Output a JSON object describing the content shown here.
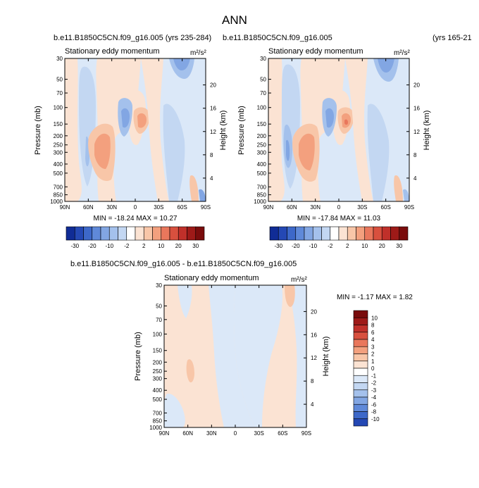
{
  "page_title": "ANN",
  "unit_label": "m²/s²",
  "colors": {
    "pos_shades": [
      "#fbe3d3",
      "#f8c6a8",
      "#f3a07e",
      "#e9775c",
      "#d8503e",
      "#c0302a",
      "#9e1a18",
      "#7a0c0c"
    ],
    "neg_shades": [
      "#dbe8f8",
      "#c3d7f2",
      "#a4c1ec",
      "#82a6e3",
      "#5f89d9",
      "#3d68c9",
      "#2448b4",
      "#102c96"
    ]
  },
  "panels": [
    {
      "id": "p1",
      "case_title": "b.e11.B1850C5CN.f09_g16.005 (yrs 235-284)",
      "subtitle": "Stationary eddy momentum",
      "unit_label": "m²/s²",
      "stats": "MIN = -18.24  MAX =  10.27",
      "ylabel": "Pressure (mb)",
      "ylabel_right": "Height (km)",
      "xticks": [
        "90N",
        "60N",
        "30N",
        "0",
        "30S",
        "60S",
        "90S"
      ],
      "yticks": [
        "30",
        "50",
        "70",
        "100",
        "150",
        "200",
        "250",
        "300",
        "400",
        "500",
        "700",
        "850",
        "1000"
      ],
      "yticks_right": [
        "20",
        "16",
        "12",
        "8",
        "4"
      ]
    },
    {
      "id": "p2",
      "case_title": "b.e11.B1850C5CN.f09_g16.005",
      "case_years": "(yrs 165-21",
      "subtitle": "Stationary eddy momentum",
      "unit_label": "m²/s²",
      "stats": "MIN = -17.84  MAX =  11.03",
      "ylabel": "Pressure (mb)",
      "ylabel_right": "Height (km)",
      "xticks": [
        "90N",
        "60N",
        "30N",
        "0",
        "30S",
        "60S",
        "90S"
      ],
      "yticks": [
        "30",
        "50",
        "70",
        "100",
        "150",
        "200",
        "250",
        "300",
        "400",
        "500",
        "700",
        "850",
        "1000"
      ],
      "yticks_right": [
        "20",
        "16",
        "12",
        "8",
        "4"
      ]
    },
    {
      "id": "p3",
      "case_title": "b.e11.B1850C5CN.f09_g16.005 - b.e11.B1850C5CN.f09_g16.005",
      "subtitle": "Stationary eddy momentum",
      "unit_label": "m²/s²",
      "stats": "MIN = -1.17  MAX =  1.82",
      "ylabel": "Pressure (mb)",
      "ylabel_right": "Height (km)",
      "xticks": [
        "90N",
        "60N",
        "30N",
        "0",
        "30S",
        "60S",
        "90S"
      ],
      "yticks": [
        "30",
        "50",
        "70",
        "100",
        "150",
        "200",
        "250",
        "300",
        "400",
        "500",
        "700",
        "850",
        "1000"
      ],
      "yticks_right": [
        "20",
        "16",
        "12",
        "8",
        "4"
      ]
    }
  ],
  "colorbar_top": {
    "labels": [
      "-30",
      "-20",
      "-10",
      "-2",
      "2",
      "10",
      "20",
      "30"
    ]
  },
  "colorbar_diff": {
    "labels": [
      "10",
      "8",
      "6",
      "4",
      "3",
      "2",
      "1",
      "0",
      "-1",
      "-2",
      "-3",
      "-4",
      "-6",
      "-8",
      "-10"
    ]
  },
  "chart_data": [
    {
      "type": "heatmap",
      "title": "Stationary eddy momentum",
      "xlabel": "",
      "ylabel": "Pressure (mb)",
      "x": [
        "90N",
        "60N",
        "30N",
        "0",
        "30S",
        "60S",
        "90S"
      ],
      "y_log_scale": true,
      "ylim": [
        1000,
        30
      ],
      "min": -18.24,
      "max": 10.27,
      "contour_levels": [
        -30,
        -20,
        -10,
        -2,
        2,
        10,
        20,
        30
      ]
    },
    {
      "type": "heatmap",
      "title": "Stationary eddy momentum",
      "xlabel": "",
      "ylabel": "Pressure (mb)",
      "x": [
        "90N",
        "60N",
        "30N",
        "0",
        "30S",
        "60S",
        "90S"
      ],
      "y_log_scale": true,
      "ylim": [
        1000,
        30
      ],
      "min": -17.84,
      "max": 11.03,
      "contour_levels": [
        -30,
        -20,
        -10,
        -2,
        2,
        10,
        20,
        30
      ]
    },
    {
      "type": "heatmap",
      "title": "Stationary eddy momentum",
      "xlabel": "",
      "ylabel": "Pressure (mb)",
      "x": [
        "90N",
        "60N",
        "30N",
        "0",
        "30S",
        "60S",
        "90S"
      ],
      "y_log_scale": true,
      "ylim": [
        1000,
        30
      ],
      "min": -1.17,
      "max": 1.82,
      "contour_levels": [
        -10,
        -8,
        -6,
        -4,
        -3,
        -2,
        -1,
        0,
        1,
        2,
        3,
        4,
        6,
        8,
        10
      ]
    }
  ]
}
